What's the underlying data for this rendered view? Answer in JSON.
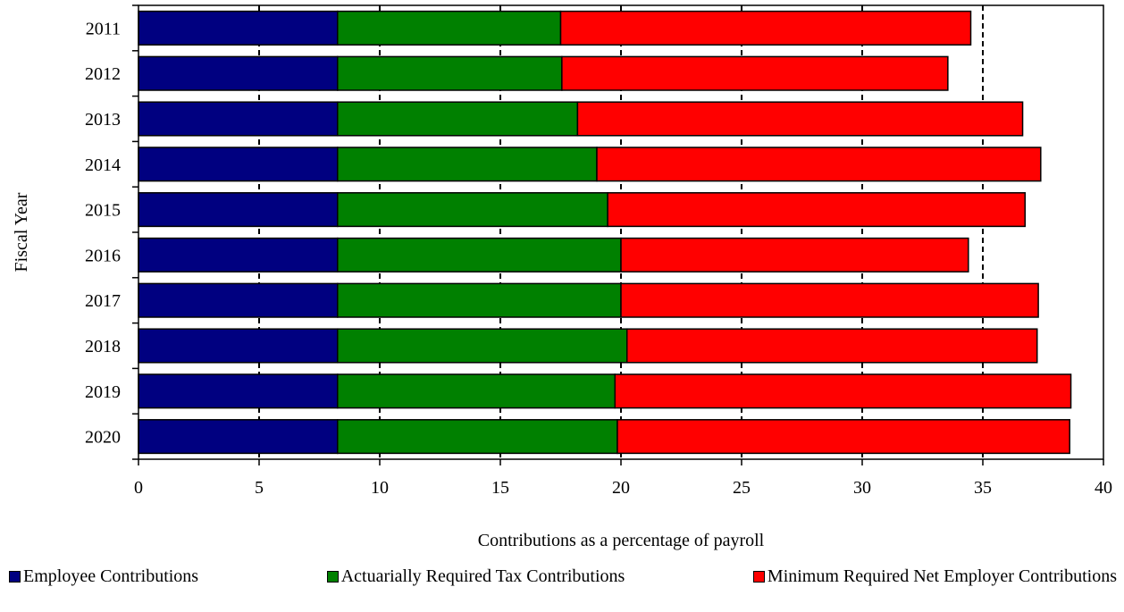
{
  "chart_data": {
    "type": "bar",
    "orientation": "horizontal",
    "stacked": true,
    "categories": [
      "2011",
      "2012",
      "2013",
      "2014",
      "2015",
      "2016",
      "2017",
      "2018",
      "2019",
      "2020"
    ],
    "series": [
      {
        "name": "Employee Contributions",
        "color": "#000080",
        "values": [
          8.25,
          8.25,
          8.25,
          8.25,
          8.25,
          8.25,
          8.25,
          8.25,
          8.25,
          8.25
        ]
      },
      {
        "name": "Actuarially Required Tax Contributions",
        "color": "#008000",
        "values": [
          9.25,
          9.3,
          9.95,
          10.75,
          11.2,
          11.75,
          11.75,
          12.0,
          11.5,
          11.6
        ]
      },
      {
        "name": "Minimum Required Net Employer Contributions",
        "color": "#ff0000",
        "values": [
          17.0,
          16.0,
          18.45,
          18.4,
          17.3,
          14.4,
          17.3,
          17.0,
          18.9,
          18.75
        ]
      }
    ],
    "xlabel": "Contributions as a percentage of payroll",
    "ylabel": "Fiscal Year",
    "xlim": [
      0,
      40
    ],
    "xticks": [
      "0",
      "5",
      "10",
      "15",
      "20",
      "25",
      "30",
      "35",
      "40"
    ],
    "grid": "vertical dashed",
    "legend_position": "bottom"
  }
}
